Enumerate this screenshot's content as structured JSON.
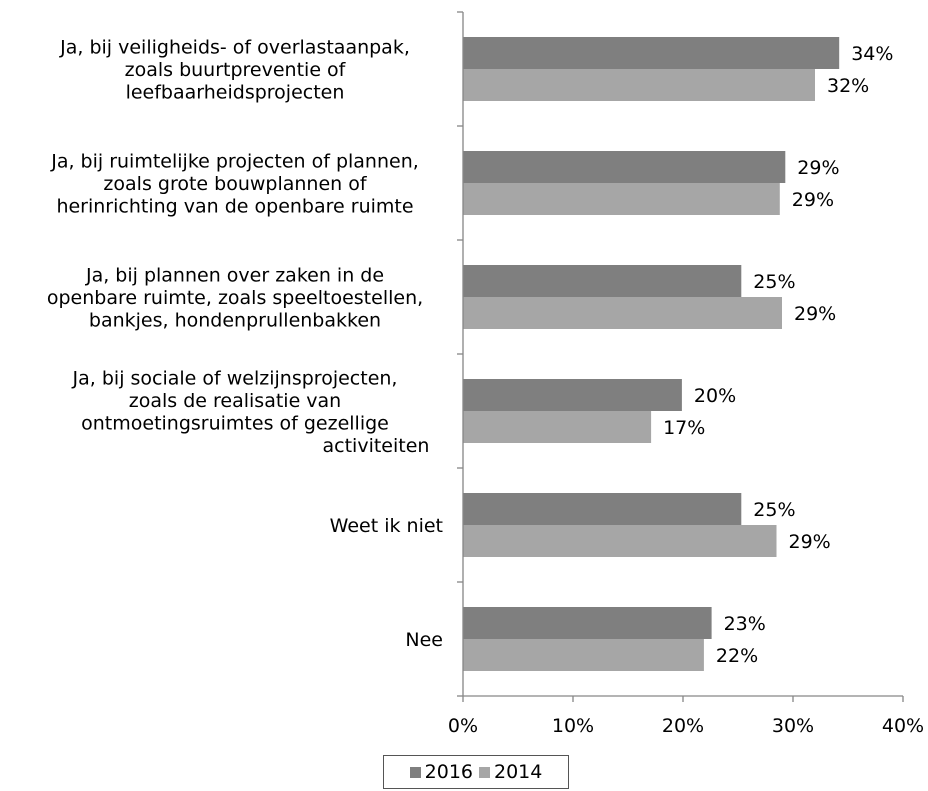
{
  "chart_data": {
    "type": "bar",
    "orientation": "horizontal",
    "categories": [
      [
        "Ja, bij veiligheids- of overlastaanpak,",
        "zoals buurtpreventie of",
        "leefbaarheidsprojecten"
      ],
      [
        "Ja, bij ruimtelijke projecten of plannen,",
        "zoals grote bouwplannen of",
        "herinrichting van de openbare ruimte"
      ],
      [
        "Ja, bij plannen over zaken in de",
        "openbare ruimte, zoals speeltoestellen,",
        "bankjes, hondenprullenbakken"
      ],
      [
        "Ja, bij sociale of welzijnsprojecten,",
        "zoals de realisatie van",
        "ontmoetingsruimtes of gezellige",
        "activiteiten"
      ],
      [
        "Weet ik niet"
      ],
      [
        "Nee"
      ]
    ],
    "series": [
      {
        "name": "2016",
        "color": "#7f7f7f",
        "values": [
          34.2,
          29.3,
          25.3,
          19.9,
          25.3,
          22.6
        ],
        "labels": [
          "34%",
          "29%",
          "25%",
          "20%",
          "25%",
          "23%"
        ]
      },
      {
        "name": "2014",
        "color": "#a6a6a6",
        "values": [
          32.0,
          28.8,
          29.0,
          17.1,
          28.5,
          21.9
        ],
        "labels": [
          "32%",
          "29%",
          "29%",
          "17%",
          "29%",
          "22%"
        ]
      }
    ],
    "xlim": [
      0,
      40
    ],
    "x_ticks": [
      "0%",
      "10%",
      "20%",
      "30%",
      "40%"
    ],
    "grid": false,
    "legend_position": "bottom"
  }
}
